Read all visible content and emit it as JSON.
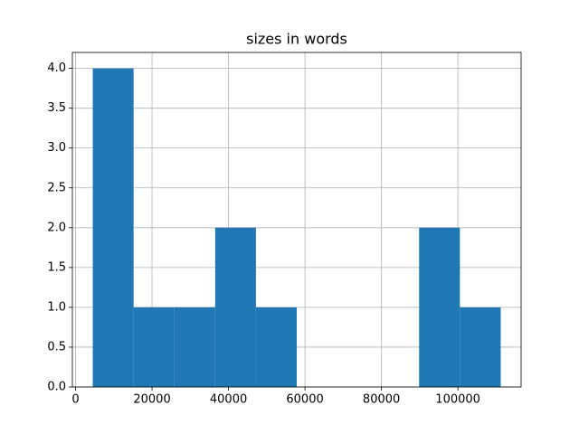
{
  "chart_data": {
    "type": "histogram",
    "title": "sizes in words",
    "bins": [
      4500,
      15170,
      25840,
      36510,
      47180,
      57850,
      68520,
      79190,
      89860,
      100530,
      111200
    ],
    "values": [
      4,
      1,
      1,
      2,
      1,
      0,
      0,
      0,
      2,
      1
    ],
    "color": "#1f77b4",
    "xlim": [
      -835,
      116535
    ],
    "xticks": [
      0,
      20000,
      40000,
      60000,
      80000,
      100000
    ],
    "ylim": [
      0,
      4.2
    ],
    "yticks": [
      {
        "value": 0,
        "label": "0.0"
      },
      {
        "value": 0.5,
        "label": "0.5"
      },
      {
        "value": 1,
        "label": "1.0"
      },
      {
        "value": 1.5,
        "label": "1.5"
      },
      {
        "value": 2,
        "label": "2.0"
      },
      {
        "value": 2.5,
        "label": "2.5"
      },
      {
        "value": 3,
        "label": "3.0"
      },
      {
        "value": 3.5,
        "label": "3.5"
      },
      {
        "value": 4,
        "label": "4.0"
      }
    ],
    "grid": true
  }
}
